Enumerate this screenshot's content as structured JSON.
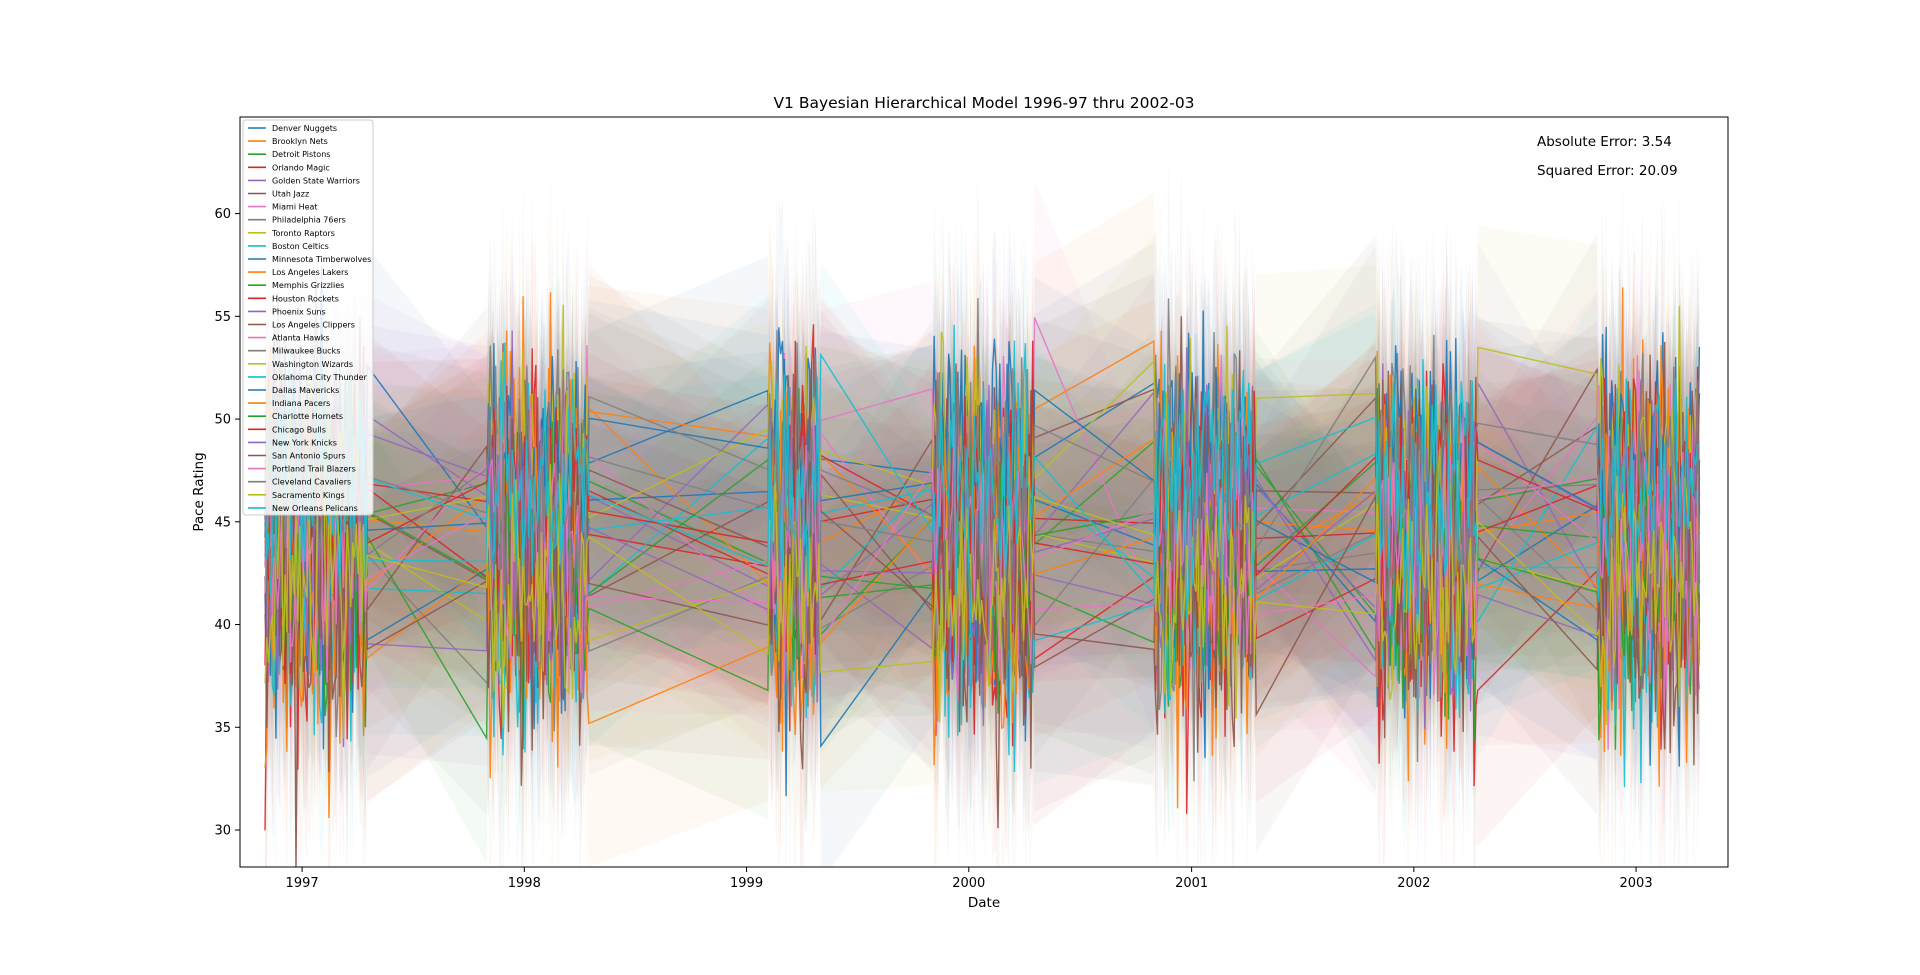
{
  "chart_data": {
    "type": "line",
    "title": "V1 Bayesian Hierarchical Model 1996-97 thru 2002-03",
    "xlabel": "Date",
    "ylabel": "Pace Rating",
    "xlim": [
      "1996-09-21",
      "2003-06-01"
    ],
    "ylim": [
      28.2,
      64.7
    ],
    "x_ticks": [
      "1997",
      "1998",
      "1999",
      "2000",
      "2001",
      "2002",
      "2003"
    ],
    "y_ticks": [
      30,
      35,
      40,
      45,
      50,
      55,
      60
    ],
    "grid": false,
    "legend_placement": "upper left",
    "uncertainty_band": "shaded interval around each series",
    "seasons": [
      {
        "start": "1996-11-01",
        "end": "1997-04-20"
      },
      {
        "start": "1997-10-31",
        "end": "1998-04-19"
      },
      {
        "start": "1999-02-05",
        "end": "1999-05-05"
      },
      {
        "start": "1999-11-02",
        "end": "2000-04-19"
      },
      {
        "start": "2000-10-31",
        "end": "2001-04-18"
      },
      {
        "start": "2001-10-30",
        "end": "2002-04-17"
      },
      {
        "start": "2002-10-29",
        "end": "2003-04-16"
      }
    ],
    "series": [
      {
        "name": "Denver Nuggets",
        "color": "#1f77b4"
      },
      {
        "name": "Brooklyn Nets",
        "color": "#ff7f0e"
      },
      {
        "name": "Detroit Pistons",
        "color": "#2ca02c"
      },
      {
        "name": "Orlando Magic",
        "color": "#d62728"
      },
      {
        "name": "Golden State Warriors",
        "color": "#9467bd"
      },
      {
        "name": "Utah Jazz",
        "color": "#8c564b"
      },
      {
        "name": "Miami Heat",
        "color": "#e377c2"
      },
      {
        "name": "Philadelphia 76ers",
        "color": "#7f7f7f"
      },
      {
        "name": "Toronto Raptors",
        "color": "#bcbd22"
      },
      {
        "name": "Boston Celtics",
        "color": "#17becf"
      },
      {
        "name": "Minnesota Timberwolves",
        "color": "#1f77b4"
      },
      {
        "name": "Los Angeles Lakers",
        "color": "#ff7f0e"
      },
      {
        "name": "Memphis Grizzlies",
        "color": "#2ca02c"
      },
      {
        "name": "Houston Rockets",
        "color": "#d62728"
      },
      {
        "name": "Phoenix Suns",
        "color": "#9467bd"
      },
      {
        "name": "Los Angeles Clippers",
        "color": "#8c564b"
      },
      {
        "name": "Atlanta Hawks",
        "color": "#e377c2"
      },
      {
        "name": "Milwaukee Bucks",
        "color": "#7f7f7f"
      },
      {
        "name": "Washington Wizards",
        "color": "#bcbd22"
      },
      {
        "name": "Oklahoma City Thunder",
        "color": "#17becf"
      },
      {
        "name": "Dallas Mavericks",
        "color": "#1f77b4"
      },
      {
        "name": "Indiana Pacers",
        "color": "#ff7f0e"
      },
      {
        "name": "Charlotte Hornets",
        "color": "#2ca02c"
      },
      {
        "name": "Chicago Bulls",
        "color": "#d62728"
      },
      {
        "name": "New York Knicks",
        "color": "#9467bd"
      },
      {
        "name": "San Antonio Spurs",
        "color": "#8c564b"
      },
      {
        "name": "Portland Trail Blazers",
        "color": "#e377c2"
      },
      {
        "name": "Cleveland Cavaliers",
        "color": "#7f7f7f"
      },
      {
        "name": "Sacramento Kings",
        "color": "#bcbd22"
      },
      {
        "name": "New Orleans Pelicans",
        "color": "#17becf"
      }
    ],
    "annotations": [
      "Absolute Error: 3.54",
      "Squared Error: 20.09"
    ]
  }
}
